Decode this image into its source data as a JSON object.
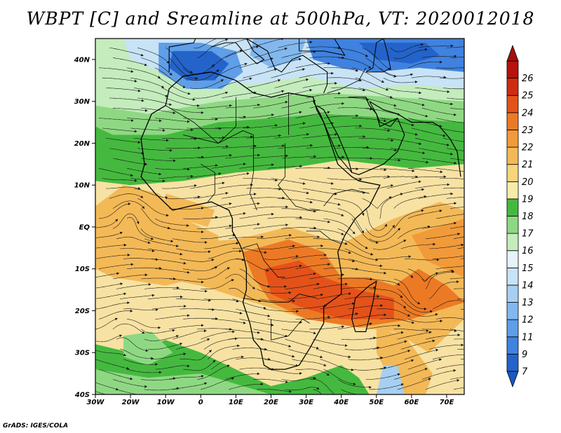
{
  "title": "WBPT [C] and Sreamline at 500hPa, VT: 2020012018",
  "credit": "GrADS: IGES/COLA",
  "map": {
    "lon_range": [
      -30,
      75
    ],
    "lat_range": [
      -40,
      45
    ],
    "lat_ticks": [
      {
        "value": 40,
        "label": "40N"
      },
      {
        "value": 30,
        "label": "30N"
      },
      {
        "value": 20,
        "label": "20N"
      },
      {
        "value": 10,
        "label": "10N"
      },
      {
        "value": 0,
        "label": "EQ"
      },
      {
        "value": -10,
        "label": "10S"
      },
      {
        "value": -20,
        "label": "20S"
      },
      {
        "value": -30,
        "label": "30S"
      },
      {
        "value": -40,
        "label": "40S"
      }
    ],
    "lon_ticks": [
      {
        "value": -30,
        "label": "30W"
      },
      {
        "value": -20,
        "label": "20W"
      },
      {
        "value": -10,
        "label": "10W"
      },
      {
        "value": 0,
        "label": "0"
      },
      {
        "value": 10,
        "label": "10E"
      },
      {
        "value": 20,
        "label": "20E"
      },
      {
        "value": 30,
        "label": "30E"
      },
      {
        "value": 40,
        "label": "40E"
      },
      {
        "value": 50,
        "label": "50E"
      },
      {
        "value": 60,
        "label": "60E"
      },
      {
        "value": 70,
        "label": "70E"
      }
    ]
  },
  "colorbar": {
    "labels": [
      "7",
      "9",
      "11",
      "12",
      "13",
      "14",
      "15",
      "16",
      "17",
      "18",
      "19",
      "20",
      "21",
      "22",
      "23",
      "24",
      "25",
      "26"
    ],
    "colors": [
      "#2463c9",
      "#3f82df",
      "#5f9ee8",
      "#82b8ee",
      "#a6cff2",
      "#c8e3f6",
      "#e6f3fa",
      "#c4ecbd",
      "#8fd883",
      "#45b93f",
      "#f8ecaa",
      "#f6d57c",
      "#f3b957",
      "#f19a3a",
      "#ec7a25",
      "#e4521a",
      "#cf2b12",
      "#b5130c"
    ],
    "min_color": "#1958c0",
    "max_color": "#a3100a"
  }
}
